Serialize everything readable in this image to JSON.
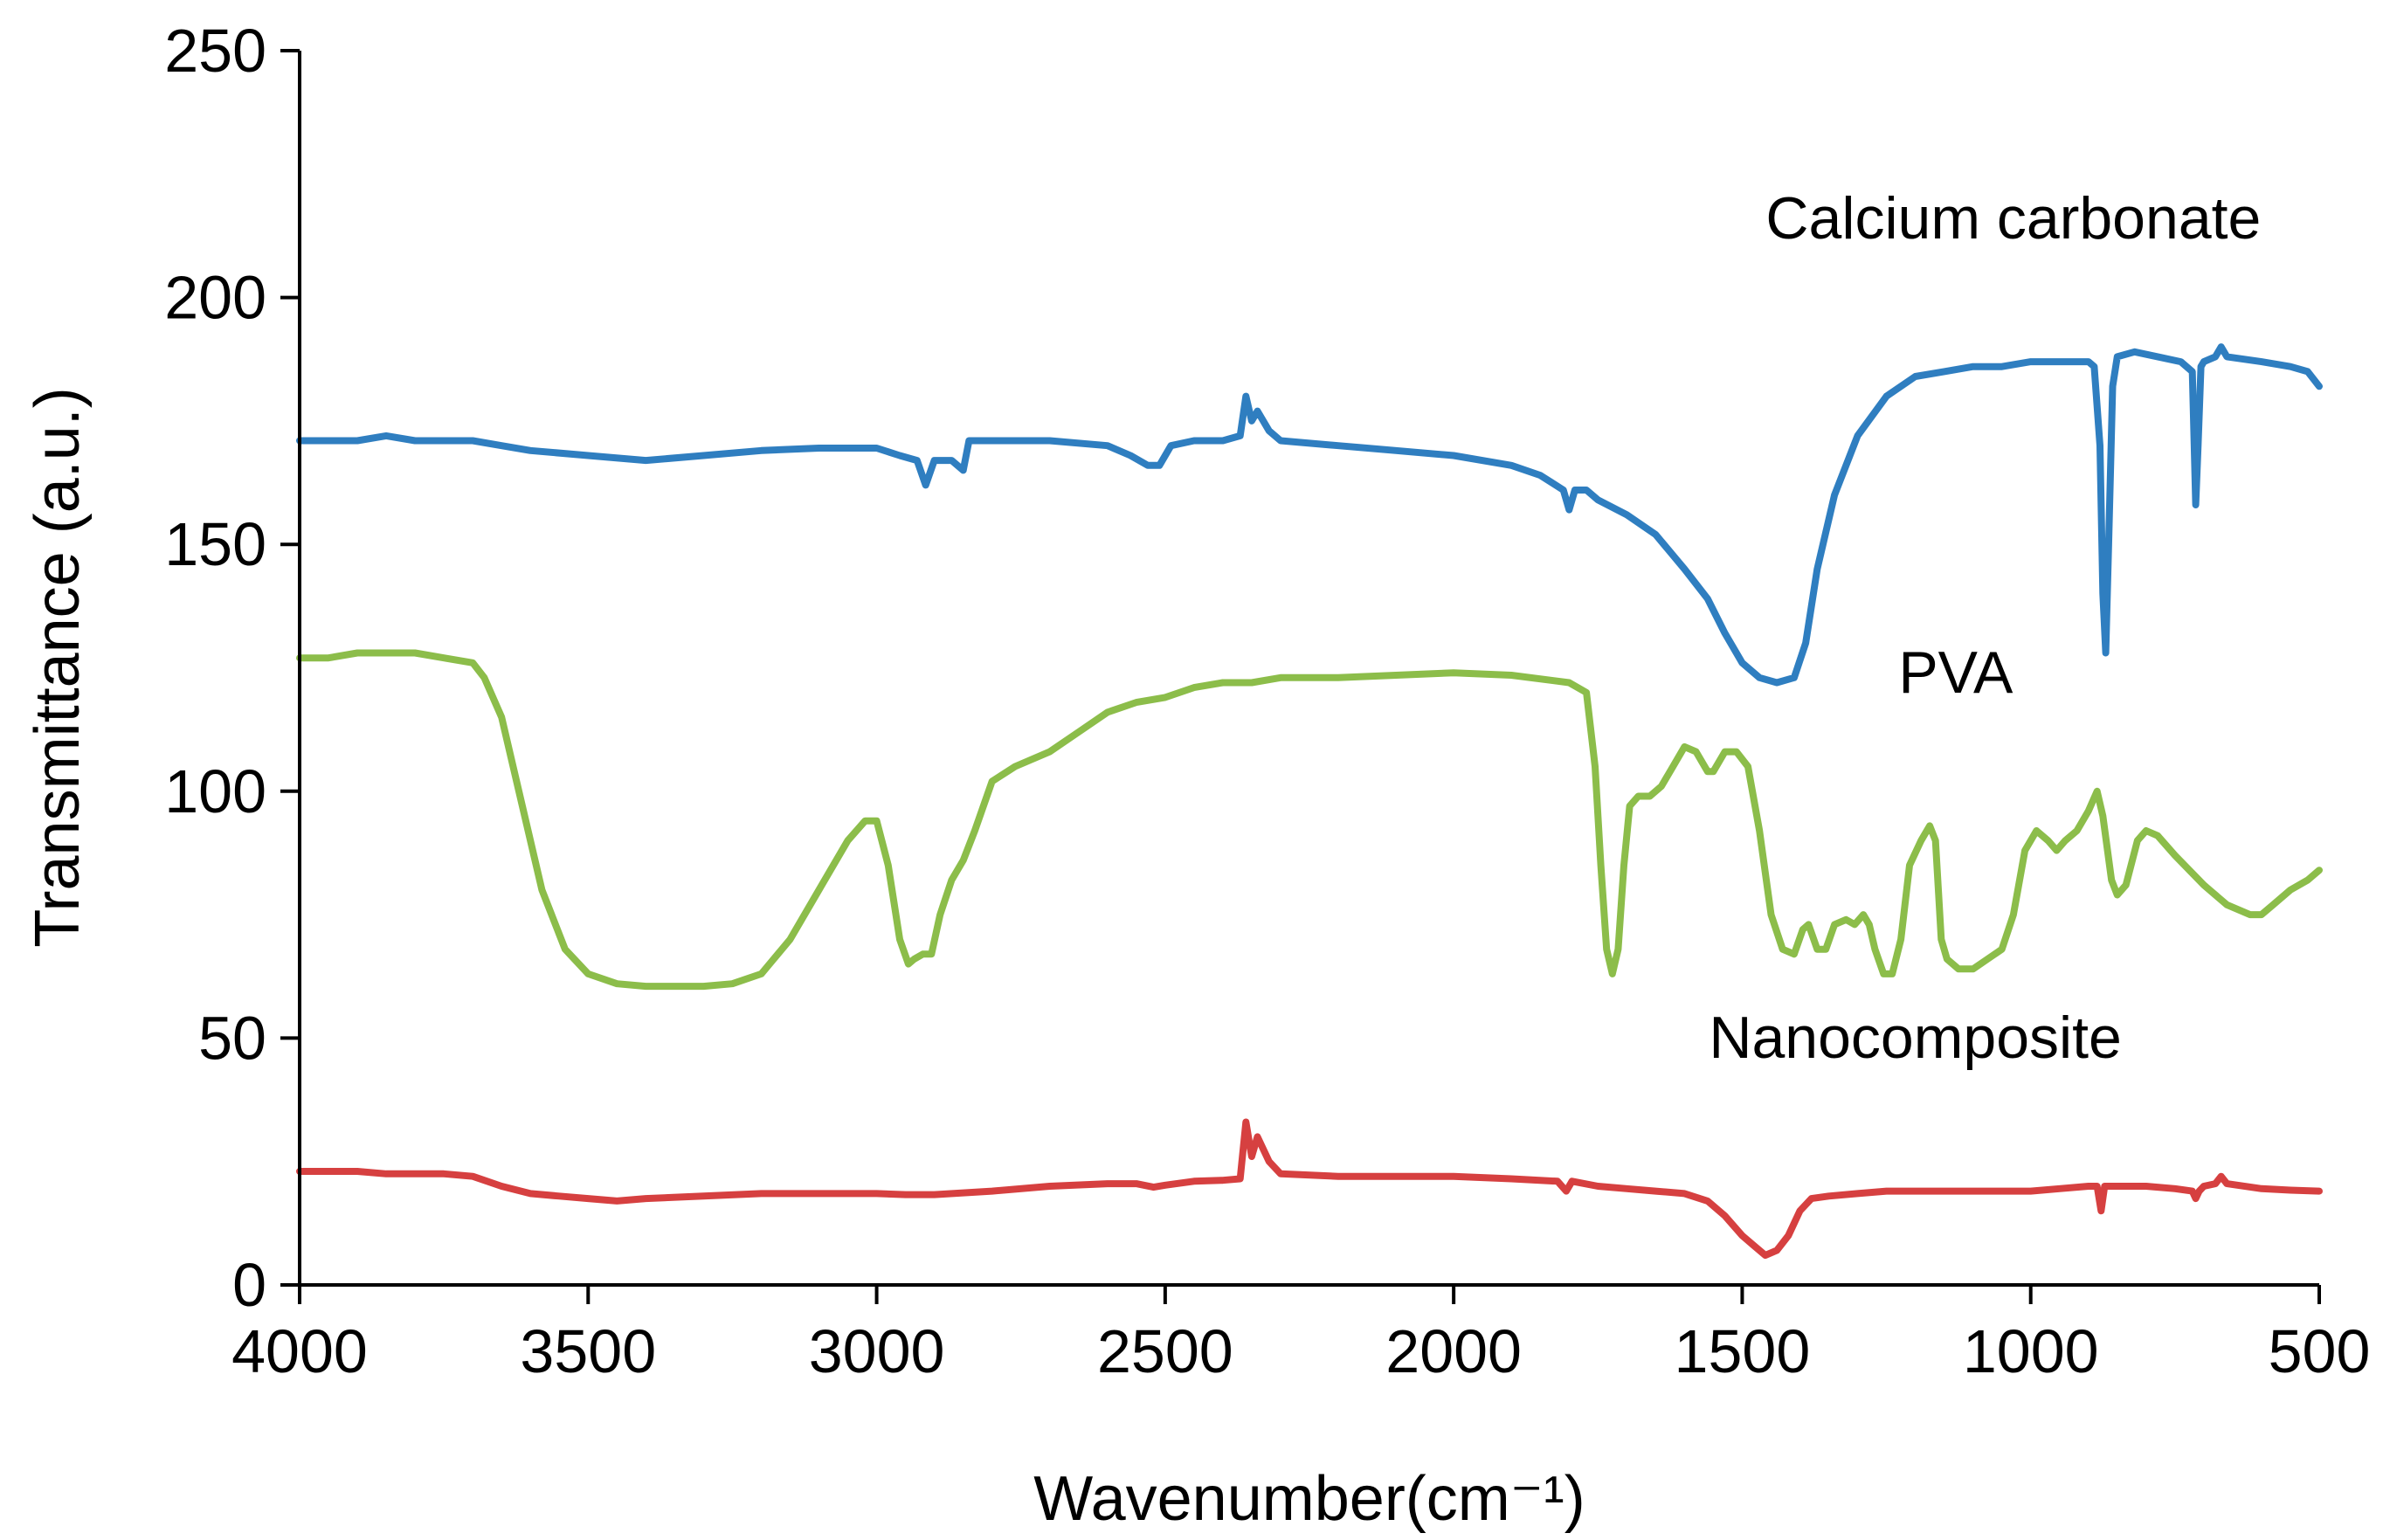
{
  "chart_data": {
    "type": "line",
    "title": "",
    "xlabel": "Wavenumber(cm⁻¹)",
    "ylabel": "Transmittance (a.u.)",
    "xlim": [
      4000,
      500
    ],
    "ylim": [
      0,
      250
    ],
    "x_reversed": true,
    "grid": false,
    "x_ticks": [
      4000,
      3500,
      3000,
      2500,
      2000,
      1500,
      1000,
      500
    ],
    "y_ticks": [
      0,
      50,
      100,
      150,
      200,
      250
    ],
    "annotations": [
      {
        "text": "Calcium carbonate",
        "x": 1030,
        "y": 212
      },
      {
        "text": "PVA",
        "x": 1130,
        "y": 120
      },
      {
        "text": "Nanocomposite",
        "x": 1200,
        "y": 46
      }
    ],
    "series": [
      {
        "name": "Calcium carbonate",
        "color": "#2f7ec0",
        "points": [
          [
            4000,
            171
          ],
          [
            3900,
            171
          ],
          [
            3850,
            172
          ],
          [
            3800,
            171
          ],
          [
            3750,
            171
          ],
          [
            3700,
            171
          ],
          [
            3650,
            170
          ],
          [
            3600,
            169
          ],
          [
            3500,
            168
          ],
          [
            3400,
            167
          ],
          [
            3300,
            168
          ],
          [
            3200,
            169
          ],
          [
            3100,
            169.5
          ],
          [
            3000,
            169.5
          ],
          [
            2960,
            168
          ],
          [
            2930,
            167
          ],
          [
            2915,
            162
          ],
          [
            2900,
            167
          ],
          [
            2870,
            167
          ],
          [
            2850,
            165
          ],
          [
            2840,
            171
          ],
          [
            2800,
            171
          ],
          [
            2700,
            171
          ],
          [
            2600,
            170
          ],
          [
            2560,
            168
          ],
          [
            2530,
            166
          ],
          [
            2510,
            166
          ],
          [
            2490,
            170
          ],
          [
            2450,
            171
          ],
          [
            2400,
            171
          ],
          [
            2370,
            172
          ],
          [
            2360,
            180
          ],
          [
            2350,
            175
          ],
          [
            2340,
            177
          ],
          [
            2320,
            173
          ],
          [
            2300,
            171
          ],
          [
            2200,
            170
          ],
          [
            2100,
            169
          ],
          [
            2000,
            168
          ],
          [
            1900,
            166
          ],
          [
            1850,
            164
          ],
          [
            1810,
            161
          ],
          [
            1800,
            157
          ],
          [
            1790,
            161
          ],
          [
            1770,
            161
          ],
          [
            1750,
            159
          ],
          [
            1700,
            156
          ],
          [
            1650,
            152
          ],
          [
            1600,
            145
          ],
          [
            1560,
            139
          ],
          [
            1530,
            132
          ],
          [
            1500,
            126
          ],
          [
            1470,
            123
          ],
          [
            1440,
            122
          ],
          [
            1410,
            123
          ],
          [
            1390,
            130
          ],
          [
            1370,
            145
          ],
          [
            1340,
            160
          ],
          [
            1300,
            172
          ],
          [
            1250,
            180
          ],
          [
            1200,
            184
          ],
          [
            1150,
            185
          ],
          [
            1100,
            186
          ],
          [
            1050,
            186
          ],
          [
            1000,
            187
          ],
          [
            950,
            187
          ],
          [
            900,
            187
          ],
          [
            890,
            186
          ],
          [
            880,
            170
          ],
          [
            875,
            140
          ],
          [
            870,
            128
          ],
          [
            865,
            150
          ],
          [
            858,
            182
          ],
          [
            850,
            188
          ],
          [
            820,
            189
          ],
          [
            780,
            188
          ],
          [
            740,
            187
          ],
          [
            720,
            185
          ],
          [
            714,
            158
          ],
          [
            710,
            170
          ],
          [
            705,
            186
          ],
          [
            700,
            187
          ],
          [
            680,
            188
          ],
          [
            670,
            190
          ],
          [
            660,
            188
          ],
          [
            600,
            187
          ],
          [
            550,
            186
          ],
          [
            520,
            185
          ],
          [
            500,
            182
          ]
        ]
      },
      {
        "name": "PVA",
        "color": "#8cbd4a",
        "points": [
          [
            4000,
            127
          ],
          [
            3950,
            127
          ],
          [
            3900,
            128
          ],
          [
            3850,
            128
          ],
          [
            3800,
            128
          ],
          [
            3750,
            127
          ],
          [
            3700,
            126
          ],
          [
            3680,
            123
          ],
          [
            3650,
            115
          ],
          [
            3620,
            100
          ],
          [
            3580,
            80
          ],
          [
            3540,
            68
          ],
          [
            3500,
            63
          ],
          [
            3450,
            61
          ],
          [
            3400,
            60.5
          ],
          [
            3300,
            60.5
          ],
          [
            3250,
            61
          ],
          [
            3200,
            63
          ],
          [
            3150,
            70
          ],
          [
            3100,
            80
          ],
          [
            3050,
            90
          ],
          [
            3020,
            94
          ],
          [
            3000,
            94
          ],
          [
            2980,
            85
          ],
          [
            2960,
            70
          ],
          [
            2945,
            65
          ],
          [
            2935,
            66
          ],
          [
            2920,
            67
          ],
          [
            2905,
            67
          ],
          [
            2890,
            75
          ],
          [
            2870,
            82
          ],
          [
            2850,
            86
          ],
          [
            2830,
            92
          ],
          [
            2800,
            102
          ],
          [
            2760,
            105
          ],
          [
            2700,
            108
          ],
          [
            2650,
            112
          ],
          [
            2600,
            116
          ],
          [
            2550,
            118
          ],
          [
            2500,
            119
          ],
          [
            2450,
            121
          ],
          [
            2400,
            122
          ],
          [
            2370,
            122
          ],
          [
            2350,
            122
          ],
          [
            2300,
            123
          ],
          [
            2200,
            123
          ],
          [
            2100,
            123.5
          ],
          [
            2000,
            124
          ],
          [
            1900,
            123.5
          ],
          [
            1800,
            122
          ],
          [
            1770,
            120
          ],
          [
            1755,
            105
          ],
          [
            1745,
            85
          ],
          [
            1735,
            68
          ],
          [
            1725,
            63
          ],
          [
            1715,
            68
          ],
          [
            1705,
            85
          ],
          [
            1695,
            97
          ],
          [
            1680,
            99
          ],
          [
            1660,
            99
          ],
          [
            1640,
            101
          ],
          [
            1620,
            105
          ],
          [
            1600,
            109
          ],
          [
            1580,
            108
          ],
          [
            1560,
            104
          ],
          [
            1550,
            104
          ],
          [
            1530,
            108
          ],
          [
            1510,
            108
          ],
          [
            1490,
            105
          ],
          [
            1470,
            92
          ],
          [
            1450,
            75
          ],
          [
            1430,
            68
          ],
          [
            1410,
            67
          ],
          [
            1395,
            72
          ],
          [
            1385,
            73
          ],
          [
            1370,
            68
          ],
          [
            1355,
            68
          ],
          [
            1340,
            73
          ],
          [
            1320,
            74
          ],
          [
            1305,
            73
          ],
          [
            1290,
            75
          ],
          [
            1280,
            73
          ],
          [
            1270,
            68
          ],
          [
            1255,
            63
          ],
          [
            1240,
            63
          ],
          [
            1225,
            70
          ],
          [
            1210,
            85
          ],
          [
            1190,
            90
          ],
          [
            1175,
            93
          ],
          [
            1165,
            90
          ],
          [
            1155,
            70
          ],
          [
            1145,
            66
          ],
          [
            1125,
            64
          ],
          [
            1100,
            64
          ],
          [
            1075,
            66
          ],
          [
            1050,
            68
          ],
          [
            1030,
            75
          ],
          [
            1010,
            88
          ],
          [
            990,
            92
          ],
          [
            970,
            90
          ],
          [
            955,
            88
          ],
          [
            940,
            90
          ],
          [
            920,
            92
          ],
          [
            900,
            96
          ],
          [
            885,
            100
          ],
          [
            875,
            95
          ],
          [
            860,
            82
          ],
          [
            850,
            79
          ],
          [
            835,
            81
          ],
          [
            815,
            90
          ],
          [
            800,
            92
          ],
          [
            780,
            91
          ],
          [
            750,
            87
          ],
          [
            700,
            81
          ],
          [
            660,
            77
          ],
          [
            620,
            75
          ],
          [
            600,
            75
          ],
          [
            580,
            77
          ],
          [
            550,
            80
          ],
          [
            520,
            82
          ],
          [
            500,
            84
          ]
        ]
      },
      {
        "name": "Nanocomposite",
        "color": "#d64040",
        "points": [
          [
            4000,
            23
          ],
          [
            3900,
            23
          ],
          [
            3850,
            22.5
          ],
          [
            3800,
            22.5
          ],
          [
            3750,
            22.5
          ],
          [
            3700,
            22
          ],
          [
            3650,
            20
          ],
          [
            3600,
            18.5
          ],
          [
            3550,
            18
          ],
          [
            3500,
            17.5
          ],
          [
            3450,
            17
          ],
          [
            3400,
            17.5
          ],
          [
            3300,
            18
          ],
          [
            3200,
            18.5
          ],
          [
            3100,
            18.5
          ],
          [
            3000,
            18.5
          ],
          [
            2950,
            18.3
          ],
          [
            2900,
            18.3
          ],
          [
            2800,
            19
          ],
          [
            2700,
            20
          ],
          [
            2600,
            20.5
          ],
          [
            2550,
            20.5
          ],
          [
            2520,
            19.8
          ],
          [
            2500,
            20.2
          ],
          [
            2450,
            21
          ],
          [
            2400,
            21.2
          ],
          [
            2370,
            21.5
          ],
          [
            2360,
            33
          ],
          [
            2350,
            26
          ],
          [
            2340,
            30
          ],
          [
            2320,
            25
          ],
          [
            2300,
            22.5
          ],
          [
            2200,
            22
          ],
          [
            2100,
            22
          ],
          [
            2000,
            22
          ],
          [
            1900,
            21.5
          ],
          [
            1820,
            21
          ],
          [
            1805,
            19
          ],
          [
            1795,
            21
          ],
          [
            1750,
            20
          ],
          [
            1700,
            19.5
          ],
          [
            1650,
            19
          ],
          [
            1600,
            18.5
          ],
          [
            1560,
            17
          ],
          [
            1530,
            14
          ],
          [
            1500,
            10
          ],
          [
            1480,
            8
          ],
          [
            1460,
            6
          ],
          [
            1440,
            7
          ],
          [
            1420,
            10
          ],
          [
            1400,
            15
          ],
          [
            1380,
            17.5
          ],
          [
            1350,
            18
          ],
          [
            1300,
            18.5
          ],
          [
            1250,
            19
          ],
          [
            1200,
            19
          ],
          [
            1100,
            19
          ],
          [
            1000,
            19
          ],
          [
            950,
            19.5
          ],
          [
            900,
            20
          ],
          [
            885,
            20
          ],
          [
            878,
            15
          ],
          [
            872,
            20
          ],
          [
            850,
            20
          ],
          [
            800,
            20
          ],
          [
            750,
            19.5
          ],
          [
            720,
            19
          ],
          [
            714,
            17.5
          ],
          [
            708,
            19
          ],
          [
            700,
            20
          ],
          [
            680,
            20.5
          ],
          [
            670,
            22
          ],
          [
            660,
            20.5
          ],
          [
            600,
            19.5
          ],
          [
            550,
            19.2
          ],
          [
            500,
            19
          ]
        ]
      }
    ]
  }
}
